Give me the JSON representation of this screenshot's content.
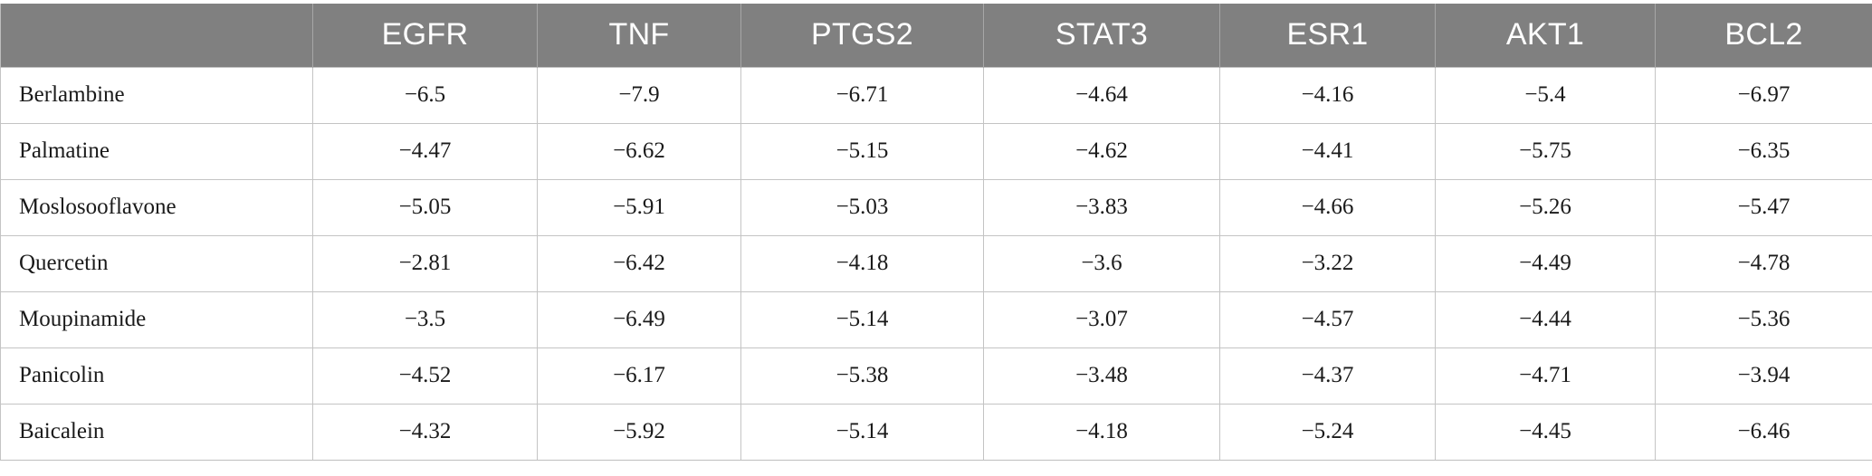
{
  "table": {
    "corner_header": "",
    "columns": [
      "EGFR",
      "TNF",
      "PTGS2",
      "STAT3",
      "ESR1",
      "AKT1",
      "BCL2"
    ],
    "rows": [
      {
        "name": "Berlambine",
        "values": [
          "−6.5",
          "−7.9",
          "−6.71",
          "−4.64",
          "−4.16",
          "−5.4",
          "−6.97"
        ]
      },
      {
        "name": "Palmatine",
        "values": [
          "−4.47",
          "−6.62",
          "−5.15",
          "−4.62",
          "−4.41",
          "−5.75",
          "−6.35"
        ]
      },
      {
        "name": "Moslosooflavone",
        "values": [
          "−5.05",
          "−5.91",
          "−5.03",
          "−3.83",
          "−4.66",
          "−5.26",
          "−5.47"
        ]
      },
      {
        "name": "Quercetin",
        "values": [
          "−2.81",
          "−6.42",
          "−4.18",
          "−3.6",
          "−3.22",
          "−4.49",
          "−4.78"
        ]
      },
      {
        "name": "Moupinamide",
        "values": [
          "−3.5",
          "−6.49",
          "−5.14",
          "−3.07",
          "−4.57",
          "−4.44",
          "−5.36"
        ]
      },
      {
        "name": "Panicolin",
        "values": [
          "−4.52",
          "−6.17",
          "−5.38",
          "−3.48",
          "−4.37",
          "−4.71",
          "−3.94"
        ]
      },
      {
        "name": "Baicalein",
        "values": [
          "−4.32",
          "−5.92",
          "−5.14",
          "−4.18",
          "−5.24",
          "−4.45",
          "−6.46"
        ]
      }
    ]
  },
  "colors": {
    "header_background": "#808080",
    "header_text": "#ffffff",
    "cell_border": "#c4c4c4",
    "body_text": "#1a1a1a"
  }
}
